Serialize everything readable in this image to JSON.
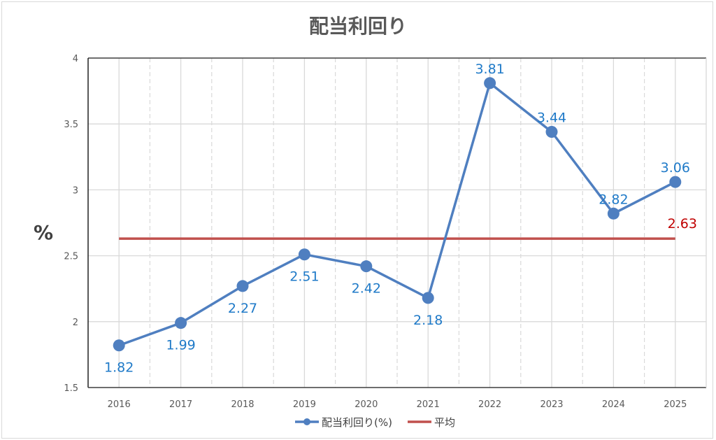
{
  "chart_data": {
    "type": "line",
    "title": "配当利回り",
    "ylabel": "%",
    "xlabel": "",
    "categories": [
      "2016",
      "2017",
      "2018",
      "2019",
      "2020",
      "2021",
      "2022",
      "2023",
      "2024",
      "2025"
    ],
    "series": [
      {
        "name": "配当利回り(%)",
        "values": [
          1.82,
          1.99,
          2.27,
          2.51,
          2.42,
          2.18,
          3.81,
          3.44,
          2.82,
          3.06
        ],
        "color": "#4f7fc0",
        "label_color": "#1f7ac8"
      },
      {
        "name": "平均",
        "values": [
          2.63,
          2.63,
          2.63,
          2.63,
          2.63,
          2.63,
          2.63,
          2.63,
          2.63,
          2.63
        ],
        "color": "#c0504d",
        "label_color": "#c00000"
      }
    ],
    "average_label": "2.63",
    "ylim": [
      1.5,
      4
    ],
    "yticks": [
      "1.5",
      "2",
      "2.5",
      "3",
      "3.5",
      "4"
    ],
    "grid": true,
    "legend": "bottom"
  }
}
